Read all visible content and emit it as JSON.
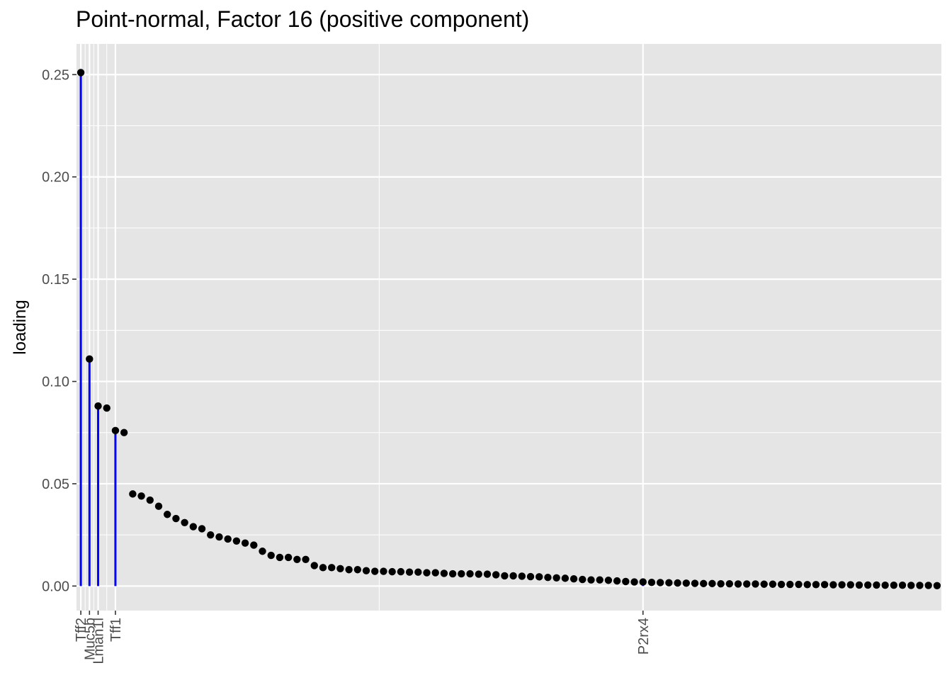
{
  "chart_data": {
    "type": "scatter",
    "title": "Point-normal, Factor 16 (positive component)",
    "xlabel": "",
    "ylabel": "loading",
    "ylim": [
      -0.012,
      0.265
    ],
    "xlim": [
      0.5,
      100.5
    ],
    "y_ticks": [
      0.0,
      0.05,
      0.1,
      0.15,
      0.2,
      0.25
    ],
    "y_tick_labels": [
      "0.00",
      "0.05",
      "0.10",
      "0.15",
      "0.20",
      "0.25"
    ],
    "grid": true,
    "x_tick_labels": [
      {
        "rank": 1,
        "label": "Tff2"
      },
      {
        "rank": 2,
        "label": "Muc5b"
      },
      {
        "rank": 3,
        "label": "Lman1l"
      },
      {
        "rank": 5,
        "label": "Tff1"
      },
      {
        "rank": 66,
        "label": "P2rx4"
      }
    ],
    "highlighted_genes": [
      {
        "name": "Tff2",
        "rank": 1,
        "value": 0.251
      },
      {
        "name": "Muc5b",
        "rank": 2,
        "value": 0.111
      },
      {
        "name": "Lman1l",
        "rank": 3,
        "value": 0.088
      },
      {
        "name": "Tff1",
        "rank": 5,
        "value": 0.076
      },
      {
        "name": "P2rx4",
        "rank": 66,
        "value": 0.002
      }
    ],
    "points": [
      0.251,
      0.111,
      0.088,
      0.087,
      0.076,
      0.075,
      0.045,
      0.044,
      0.042,
      0.039,
      0.035,
      0.033,
      0.031,
      0.029,
      0.028,
      0.025,
      0.024,
      0.023,
      0.022,
      0.021,
      0.02,
      0.017,
      0.015,
      0.014,
      0.014,
      0.013,
      0.013,
      0.01,
      0.009,
      0.009,
      0.0085,
      0.008,
      0.008,
      0.0075,
      0.0072,
      0.0072,
      0.007,
      0.007,
      0.0068,
      0.0068,
      0.0065,
      0.0065,
      0.0062,
      0.006,
      0.006,
      0.006,
      0.0058,
      0.0058,
      0.0055,
      0.005,
      0.005,
      0.0048,
      0.0046,
      0.0045,
      0.0042,
      0.004,
      0.0038,
      0.0035,
      0.0032,
      0.003,
      0.003,
      0.0028,
      0.0025,
      0.0022,
      0.002,
      0.002,
      0.0018,
      0.0017,
      0.0016,
      0.0015,
      0.0014,
      0.0013,
      0.0012,
      0.0012,
      0.0011,
      0.0011,
      0.001,
      0.001,
      0.001,
      0.0009,
      0.0009,
      0.0008,
      0.0008,
      0.0008,
      0.0007,
      0.0007,
      0.0007,
      0.0006,
      0.0006,
      0.0006,
      0.0005,
      0.0005,
      0.0005,
      0.0004,
      0.0004,
      0.0004,
      0.0003,
      0.0003,
      0.0003,
      0.0002
    ],
    "colors": {
      "panel_background": "#e5e5e5",
      "grid": "#ffffff",
      "points": "#000000",
      "highlight_segments": "#0000ff"
    }
  }
}
